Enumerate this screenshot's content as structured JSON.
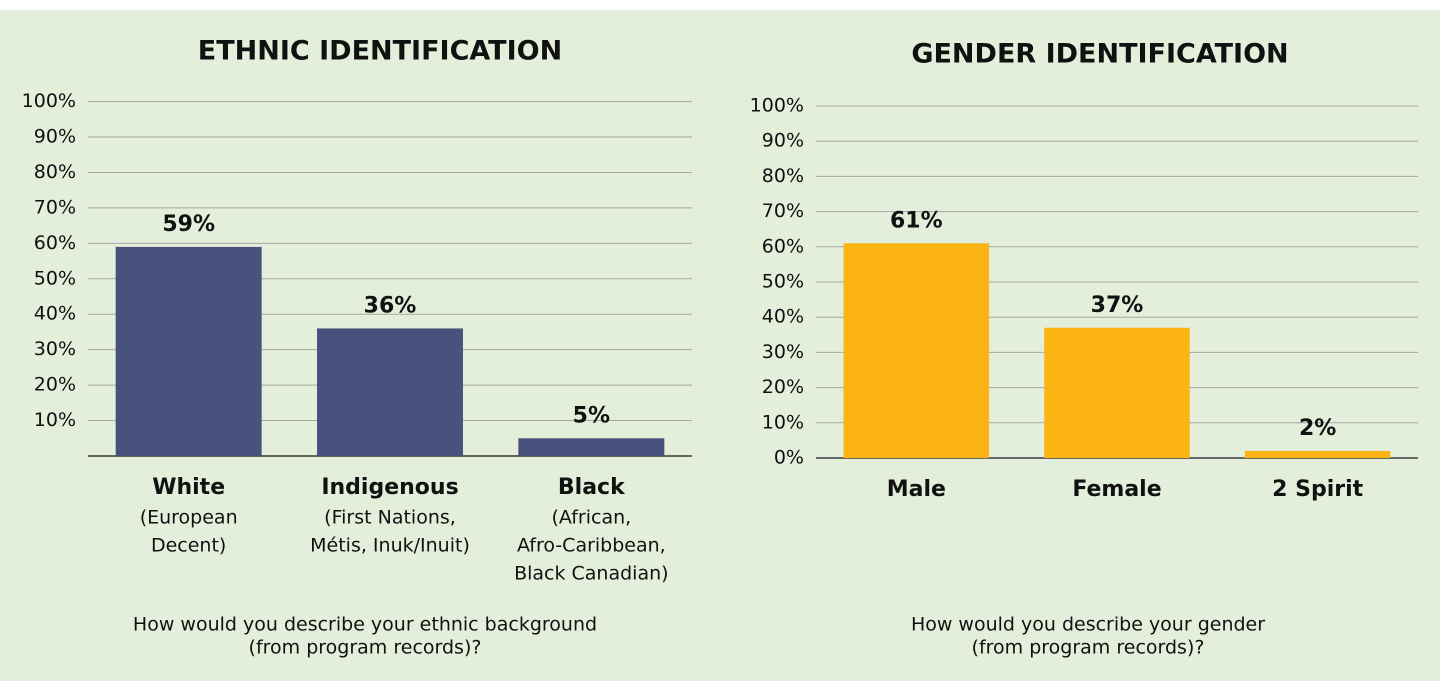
{
  "chart_data": [
    {
      "type": "bar",
      "title": "ETHNIC IDENTIFICATION",
      "categories": [
        "White",
        "Indigenous",
        "Black"
      ],
      "category_notes": [
        [
          "(European",
          "Decent)"
        ],
        [
          "(First Nations,",
          "Métis, Inuk/Inuit)"
        ],
        [
          "(African,",
          "Afro-Caribbean,",
          "Black Canadian)"
        ]
      ],
      "values": [
        59,
        36,
        5
      ],
      "value_labels": [
        "59%",
        "36%",
        "5%"
      ],
      "color": "#48527c",
      "ylim": [
        0,
        100
      ],
      "yticks": [
        {
          "value": 10,
          "label": "10%"
        },
        {
          "value": 20,
          "label": "20%"
        },
        {
          "value": 30,
          "label": "30%"
        },
        {
          "value": 40,
          "label": "40%"
        },
        {
          "value": 50,
          "label": "50%"
        },
        {
          "value": 60,
          "label": "60%"
        },
        {
          "value": 70,
          "label": "70%"
        },
        {
          "value": 80,
          "label": "80%"
        },
        {
          "value": 90,
          "label": "90%"
        },
        {
          "value": 100,
          "label": "100%"
        }
      ],
      "grid": true,
      "caption": [
        "How would you describe your ethnic background",
        "(from program records)?"
      ]
    },
    {
      "type": "bar",
      "title": "GENDER IDENTIFICATION",
      "categories": [
        "Male",
        "Female",
        "2 Spirit"
      ],
      "values": [
        61,
        37,
        2
      ],
      "value_labels": [
        "61%",
        "37%",
        "2%"
      ],
      "color": "#fbb414",
      "ylim": [
        0,
        100
      ],
      "yticks": [
        {
          "value": 0,
          "label": "0%"
        },
        {
          "value": 10,
          "label": "10%"
        },
        {
          "value": 20,
          "label": "20%"
        },
        {
          "value": 30,
          "label": "30%"
        },
        {
          "value": 40,
          "label": "40%"
        },
        {
          "value": 50,
          "label": "50%"
        },
        {
          "value": 60,
          "label": "60%"
        },
        {
          "value": 70,
          "label": "70%"
        },
        {
          "value": 80,
          "label": "80%"
        },
        {
          "value": 90,
          "label": "90%"
        },
        {
          "value": 100,
          "label": "100%"
        }
      ],
      "grid": true,
      "caption": [
        "How would you describe your gender",
        "(from program records)?"
      ]
    }
  ]
}
